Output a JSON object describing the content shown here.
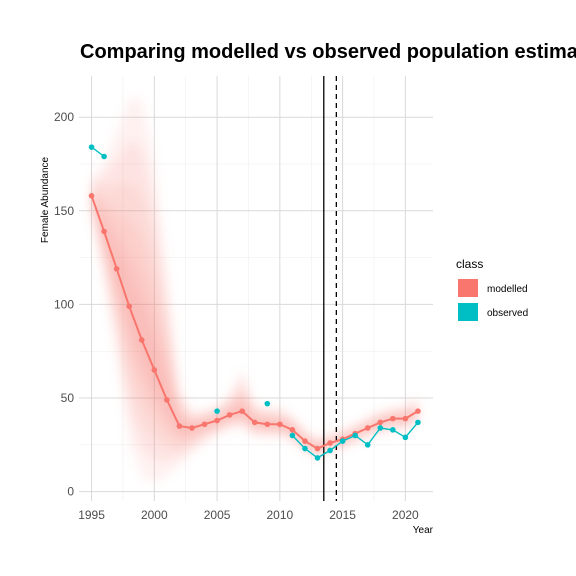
{
  "chart_data": {
    "type": "line",
    "title": "Comparing modelled vs observed population estimat",
    "xlabel": "Year",
    "ylabel": "Female Abundance",
    "xlim": [
      1994.0,
      2022.2
    ],
    "ylim": [
      -5,
      222
    ],
    "x_ticks": [
      "1995",
      "2000",
      "2005",
      "2010",
      "2015",
      "2020"
    ],
    "y_ticks": [
      "0",
      "50",
      "100",
      "150",
      "200"
    ],
    "grid": true,
    "legend": {
      "title": "class",
      "position": "right"
    },
    "vlines": [
      {
        "x": 2013.5,
        "style": "solid"
      },
      {
        "x": 2014.5,
        "style": "dashed"
      }
    ],
    "series": [
      {
        "name": "modelled",
        "color": "#F8766D",
        "x": [
          1995,
          1996,
          1997,
          1998,
          1999,
          2000,
          2001,
          2002,
          2003,
          2004,
          2005,
          2006,
          2007,
          2008,
          2009,
          2010,
          2011,
          2012,
          2013,
          2014,
          2015,
          2016,
          2017,
          2018,
          2019,
          2020,
          2021
        ],
        "y": [
          158,
          139,
          119,
          99,
          81,
          65,
          49,
          35,
          34,
          36,
          38,
          41,
          43,
          37,
          36,
          36,
          33,
          27,
          23,
          26,
          28,
          31,
          34,
          37,
          39,
          39,
          43
        ],
        "ci_outer_upper": [
          168,
          176,
          192,
          210,
          210,
          178,
          120,
          56,
          43,
          44,
          46,
          52,
          66,
          47,
          45,
          45,
          41,
          33,
          29,
          31,
          33,
          36,
          40,
          43,
          45,
          46,
          50
        ],
        "ci_outer_lower": [
          148,
          112,
          72,
          26,
          8,
          5,
          8,
          14,
          20,
          26,
          30,
          33,
          34,
          29,
          29,
          29,
          27,
          21,
          18,
          21,
          23,
          26,
          29,
          31,
          33,
          33,
          37
        ]
      },
      {
        "name": "observed",
        "color": "#00BFC4",
        "segments": [
          [
            [
              1995,
              184
            ],
            [
              1996,
              179
            ]
          ],
          [
            [
              2005,
              43
            ]
          ],
          [
            [
              2009,
              47
            ]
          ],
          [
            [
              2011,
              30
            ],
            [
              2012,
              23
            ],
            [
              2013,
              18
            ],
            [
              2014,
              22
            ],
            [
              2015,
              27
            ],
            [
              2016,
              30
            ],
            [
              2017,
              25
            ],
            [
              2018,
              34
            ],
            [
              2019,
              33
            ],
            [
              2020,
              29
            ],
            [
              2021,
              37
            ]
          ]
        ]
      }
    ]
  }
}
